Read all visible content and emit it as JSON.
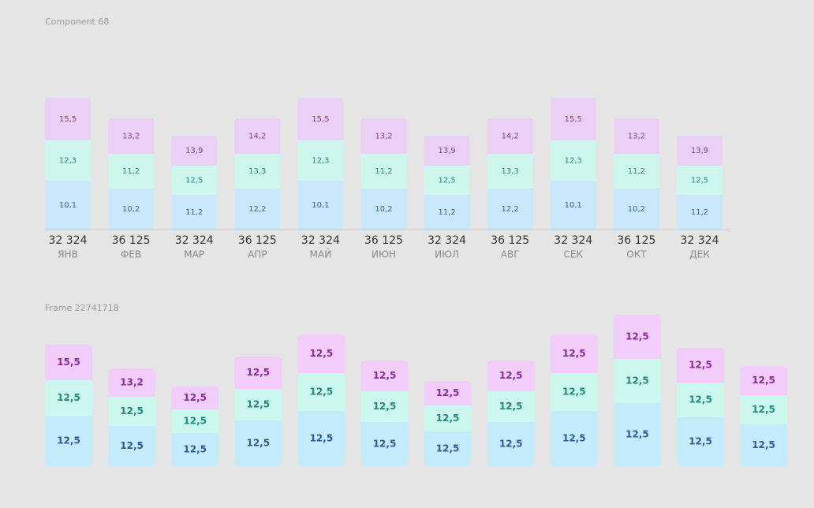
{
  "frames": [
    {
      "label": "Component 68",
      "columns": [
        {
          "segments": [
            "15,5",
            "12,3",
            "10,1"
          ],
          "total": "32 324",
          "month": "ЯНВ"
        },
        {
          "segments": [
            "13,2",
            "11,2",
            "10,2"
          ],
          "total": "36 125",
          "month": "ФЕВ"
        },
        {
          "segments": [
            "13,9",
            "12,5",
            "11,2"
          ],
          "total": "32 324",
          "month": "МАР"
        },
        {
          "segments": [
            "14,2",
            "13,3",
            "12,2"
          ],
          "total": "36 125",
          "month": "АПР"
        },
        {
          "segments": [
            "15,5",
            "12,3",
            "10,1"
          ],
          "total": "32 324",
          "month": "МАЙ"
        },
        {
          "segments": [
            "13,2",
            "11,2",
            "10,2"
          ],
          "total": "36 125",
          "month": "ИЮН"
        },
        {
          "segments": [
            "13,9",
            "12,5",
            "11,2"
          ],
          "total": "32 324",
          "month": "ИЮЛ"
        },
        {
          "segments": [
            "14,2",
            "13,3",
            "12,2"
          ],
          "total": "36 125",
          "month": "АВГ"
        },
        {
          "segments": [
            "15,5",
            "12,3",
            "10,1"
          ],
          "total": "32 324",
          "month": "СЕК"
        },
        {
          "segments": [
            "13,2",
            "11,2",
            "10,2"
          ],
          "total": "36 125",
          "month": "ОКТ"
        },
        {
          "segments": [
            "13,9",
            "12,5",
            "11,2"
          ],
          "total": "32 324",
          "month": "ДЕК"
        }
      ]
    },
    {
      "label": "Frame 22741718",
      "columns": [
        {
          "segments": [
            "15,5",
            "12,5",
            "12,5"
          ]
        },
        {
          "segments": [
            "13,2",
            "12,5",
            "12,5"
          ]
        },
        {
          "segments": [
            "12,5",
            "12,5",
            "12,5"
          ]
        },
        {
          "segments": [
            "12,5",
            "12,5",
            "12,5"
          ]
        },
        {
          "segments": [
            "12,5",
            "12,5",
            "12,5"
          ]
        },
        {
          "segments": [
            "12,5",
            "12,5",
            "12,5"
          ]
        },
        {
          "segments": [
            "12,5",
            "12,5",
            "12,5"
          ]
        },
        {
          "segments": [
            "12,5",
            "12,5",
            "12,5"
          ]
        },
        {
          "segments": [
            "12,5",
            "12,5",
            "12,5"
          ]
        },
        {
          "segments": [
            "12,5",
            "12,5",
            "12,5"
          ]
        },
        {
          "segments": [
            "12,5",
            "12,5",
            "12,5"
          ]
        },
        {
          "segments": [
            "12,5",
            "12,5",
            "12,5"
          ]
        }
      ]
    }
  ]
}
